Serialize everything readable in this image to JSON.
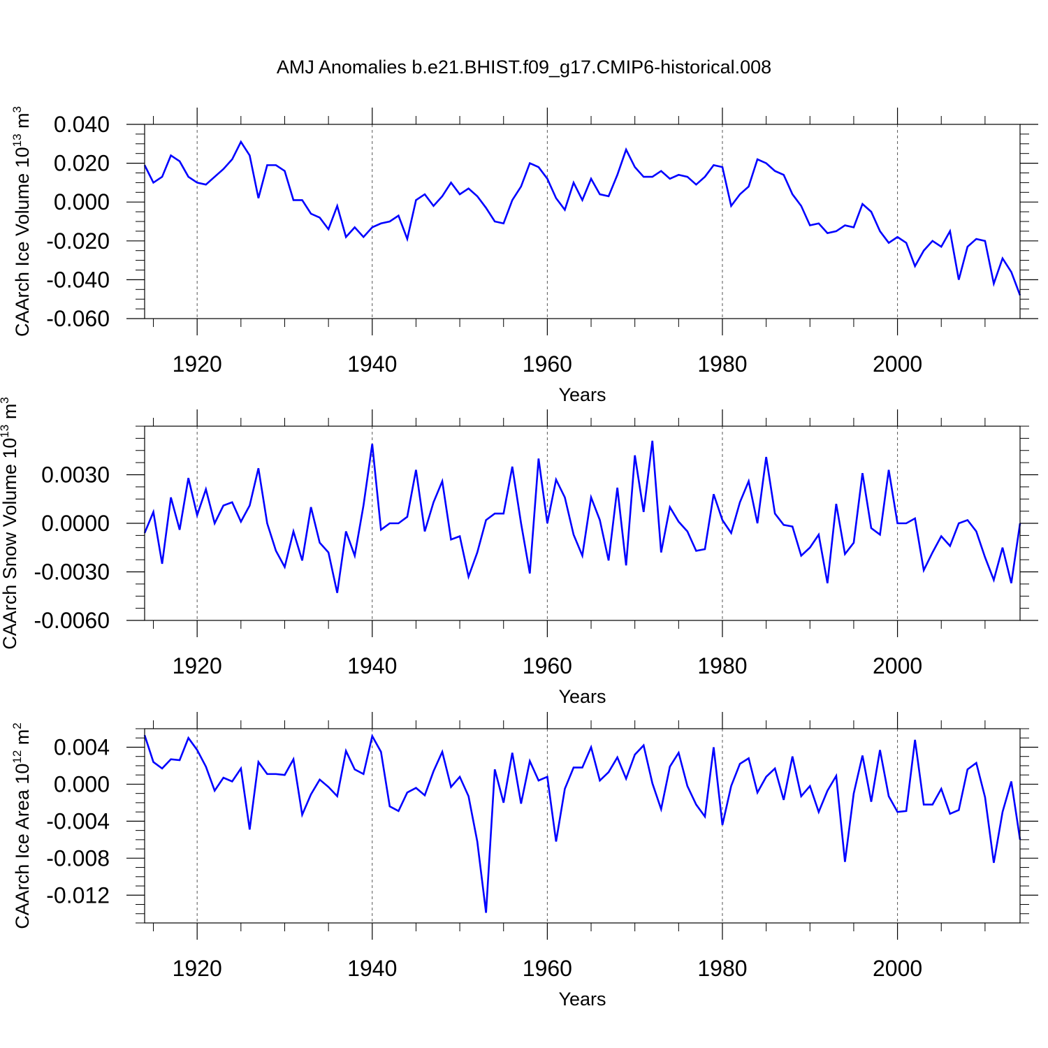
{
  "title": "AMJ Anomalies b.e21.BHIST.f09_g17.CMIP6-historical.008",
  "chart_data": [
    {
      "type": "line",
      "ylabel": "CAArch Ice Volume 10",
      "yexp": "13",
      "yunit": " m",
      "yunit_exp": "3",
      "xlabel": "Years",
      "xlim": [
        1914,
        2014
      ],
      "ylim": [
        -0.06,
        0.04
      ],
      "yticks": [
        0.04,
        0.02,
        0.0,
        -0.02,
        -0.04,
        -0.06
      ],
      "ytick_labels": [
        "0.040",
        "0.020",
        "0.000",
        "-0.020",
        "-0.040",
        "-0.060"
      ],
      "xticks": [
        1920,
        1940,
        1960,
        1980,
        2000
      ],
      "xtick_labels": [
        "1920",
        "1940",
        "1960",
        "1980",
        "2000"
      ],
      "color": "#0000ff",
      "x_start": 1914,
      "values": [
        0.019,
        0.01,
        0.013,
        0.024,
        0.021,
        0.013,
        0.01,
        0.009,
        0.013,
        0.017,
        0.022,
        0.031,
        0.024,
        0.002,
        0.019,
        0.019,
        0.016,
        0.001,
        0.001,
        -0.006,
        -0.008,
        -0.014,
        -0.002,
        -0.018,
        -0.013,
        -0.018,
        -0.013,
        -0.011,
        -0.01,
        -0.007,
        -0.019,
        0.001,
        0.004,
        -0.002,
        0.003,
        0.01,
        0.004,
        0.007,
        0.003,
        -0.003,
        -0.01,
        -0.011,
        0.001,
        0.008,
        0.02,
        0.018,
        0.012,
        0.002,
        -0.004,
        0.01,
        0.001,
        0.012,
        0.004,
        0.003,
        0.014,
        0.027,
        0.018,
        0.013,
        0.013,
        0.016,
        0.012,
        0.014,
        0.013,
        0.009,
        0.013,
        0.019,
        0.018,
        -0.002,
        0.004,
        0.008,
        0.022,
        0.02,
        0.016,
        0.014,
        0.004,
        -0.002,
        -0.012,
        -0.011,
        -0.016,
        -0.015,
        -0.012,
        -0.013,
        -0.001,
        -0.005,
        -0.015,
        -0.021,
        -0.018,
        -0.021,
        -0.033,
        -0.025,
        -0.02,
        -0.023,
        -0.015,
        -0.04,
        -0.023,
        -0.019,
        -0.02,
        -0.042,
        -0.029,
        -0.036,
        -0.048
      ]
    },
    {
      "type": "line",
      "ylabel": "CAArch Snow Volume 10",
      "yexp": "13",
      "yunit": " m",
      "yunit_exp": "3",
      "xlabel": "Years",
      "xlim": [
        1914,
        2014
      ],
      "ylim": [
        -0.006,
        0.006
      ],
      "yticks": [
        0.003,
        0.0,
        -0.003,
        -0.006
      ],
      "ytick_labels": [
        "0.0030",
        "0.0000",
        "-0.0030",
        "-0.0060"
      ],
      "xticks": [
        1920,
        1940,
        1960,
        1980,
        2000
      ],
      "xtick_labels": [
        "1920",
        "1940",
        "1960",
        "1980",
        "2000"
      ],
      "color": "#0000ff",
      "x_start": 1914,
      "values": [
        -0.0006,
        0.0007,
        -0.0025,
        0.0016,
        -0.0004,
        0.0028,
        0.0005,
        0.0021,
        0.0,
        0.0011,
        0.0013,
        0.0001,
        0.0011,
        0.0034,
        0.0,
        -0.0017,
        -0.0027,
        -0.0005,
        -0.0023,
        0.001,
        -0.0012,
        -0.0018,
        -0.0043,
        -0.0005,
        -0.002,
        0.0011,
        0.0049,
        -0.0004,
        0.0,
        0.0,
        0.0004,
        0.0033,
        -0.0005,
        0.0013,
        0.0026,
        -0.001,
        -0.0008,
        -0.0033,
        -0.0018,
        0.0002,
        0.0006,
        0.0006,
        0.0035,
        0.0,
        -0.0031,
        0.004,
        0.0,
        0.0027,
        0.0016,
        -0.0007,
        -0.002,
        0.0016,
        0.0002,
        -0.0023,
        0.0022,
        -0.0026,
        0.0042,
        0.0007,
        0.0051,
        -0.0018,
        0.001,
        0.0001,
        -0.0005,
        -0.0017,
        -0.0016,
        0.0018,
        0.0002,
        -0.0006,
        0.0013,
        0.0026,
        0.0,
        0.0041,
        0.0006,
        -0.0001,
        -0.0002,
        -0.002,
        -0.0015,
        -0.0007,
        -0.0037,
        0.0012,
        -0.0019,
        -0.0012,
        0.0031,
        -0.0003,
        -0.0007,
        0.0033,
        0.0,
        0.0,
        0.0003,
        -0.0029,
        -0.0018,
        -0.0008,
        -0.0014,
        0.0,
        0.0002,
        -0.0005,
        -0.0021,
        -0.0035,
        -0.0015,
        -0.0037,
        0.0
      ]
    },
    {
      "type": "line",
      "ylabel": "CAArch Ice Area 10",
      "yexp": "12",
      "yunit": " m",
      "yunit_exp": "2",
      "xlabel": "Years",
      "xlim": [
        1914,
        2014
      ],
      "ylim": [
        -0.015,
        0.006
      ],
      "yticks": [
        0.004,
        0.0,
        -0.004,
        -0.008,
        -0.012
      ],
      "ytick_labels": [
        "0.004",
        "0.000",
        "-0.004",
        "-0.008",
        "-0.012"
      ],
      "xticks": [
        1920,
        1940,
        1960,
        1980,
        2000
      ],
      "xtick_labels": [
        "1920",
        "1940",
        "1960",
        "1980",
        "2000"
      ],
      "color": "#0000ff",
      "x_start": 1914,
      "values": [
        0.0053,
        0.0024,
        0.0017,
        0.0027,
        0.0026,
        0.005,
        0.0037,
        0.0019,
        -0.0007,
        0.0007,
        0.0003,
        0.0017,
        -0.0049,
        0.0024,
        0.0011,
        0.0011,
        0.001,
        0.0027,
        -0.0033,
        -0.0011,
        0.0005,
        -0.0003,
        -0.0013,
        0.0036,
        0.0016,
        0.0011,
        0.0052,
        0.0035,
        -0.0024,
        -0.0029,
        -0.0009,
        -0.0004,
        -0.0012,
        0.0014,
        0.0035,
        -0.0003,
        0.0008,
        -0.0013,
        -0.0062,
        -0.0139,
        0.0016,
        -0.002,
        0.0034,
        -0.0021,
        0.0025,
        0.0004,
        0.0008,
        -0.0062,
        -0.0005,
        0.0018,
        0.0018,
        0.004,
        0.0004,
        0.0013,
        0.0029,
        0.0006,
        0.0032,
        0.0042,
        0.0001,
        -0.0027,
        0.0019,
        0.0034,
        -0.0002,
        -0.0022,
        -0.0035,
        0.004,
        -0.0044,
        -0.0002,
        0.0022,
        0.0028,
        -0.0009,
        0.0008,
        0.0017,
        -0.0017,
        0.003,
        -0.0013,
        -0.0002,
        -0.003,
        -0.0007,
        0.0009,
        -0.0084,
        -0.001,
        0.0031,
        -0.0019,
        0.0037,
        -0.0013,
        -0.003,
        -0.0029,
        0.0048,
        -0.0022,
        -0.0022,
        -0.0005,
        -0.0032,
        -0.0028,
        0.0016,
        0.0023,
        -0.0014,
        -0.0085,
        -0.003,
        0.0003,
        -0.006
      ]
    }
  ]
}
